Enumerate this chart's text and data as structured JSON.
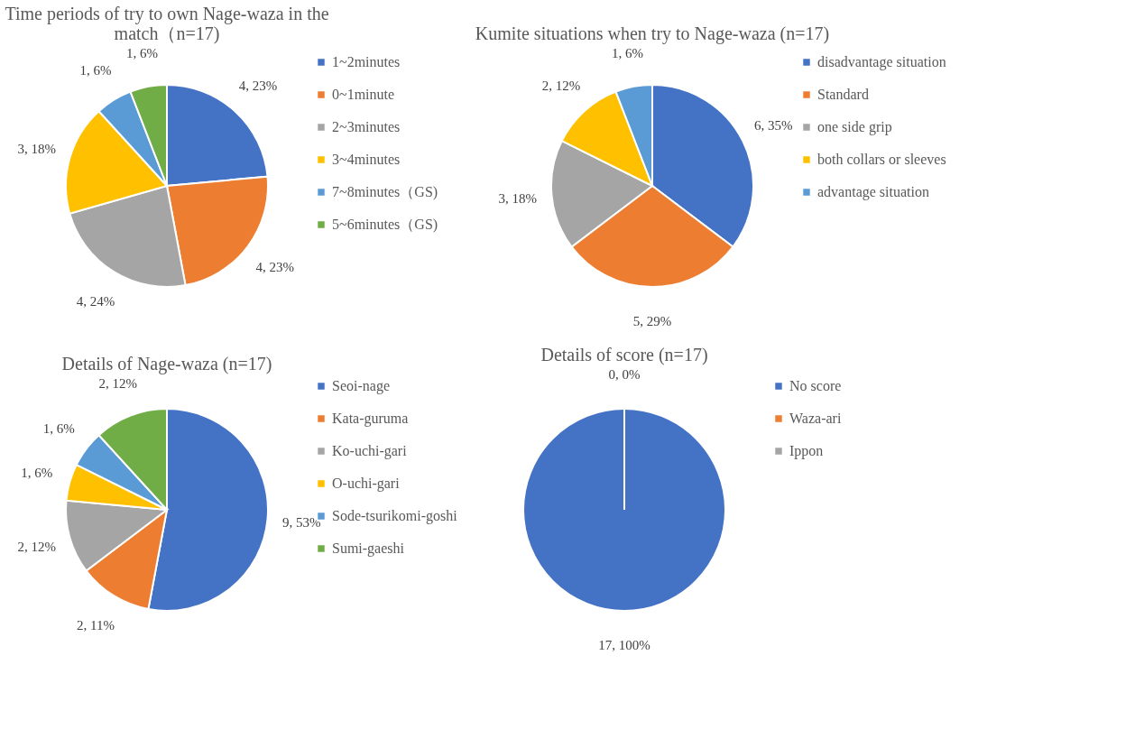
{
  "chart_data": [
    {
      "type": "pie",
      "title": "Time periods of try to own Nage-waza in the match（n=17)",
      "categories": [
        "1~2minutes",
        "0~1minute",
        "2~3minutes",
        "3~4minutes",
        "7~8minutes（GS)",
        "5~6minutes（GS)"
      ],
      "values": [
        4,
        4,
        4,
        3,
        1,
        1
      ],
      "value_labels": [
        "4, 23%",
        "4, 23%",
        "4, 24%",
        "3, 18%",
        "1, 6%",
        "1, 6%"
      ],
      "colors": [
        "#4472c4",
        "#ed7d31",
        "#a5a5a5",
        "#ffc000",
        "#5b9bd5",
        "#70ad47"
      ],
      "legend": "right"
    },
    {
      "type": "pie",
      "title": "Kumite situations when try to Nage-waza (n=17)",
      "categories": [
        "disadvantage situation",
        "Standard",
        "one side grip",
        "both collars or sleeves",
        "advantage situation"
      ],
      "values": [
        6,
        5,
        3,
        2,
        1
      ],
      "value_labels": [
        "6, 35%",
        "5, 29%",
        "3, 18%",
        "2, 12%",
        "1, 6%"
      ],
      "colors": [
        "#4472c4",
        "#ed7d31",
        "#a5a5a5",
        "#ffc000",
        "#5b9bd5"
      ],
      "legend": "right"
    },
    {
      "type": "pie",
      "title": "Details of Nage-waza (n=17)",
      "categories": [
        "Seoi-nage",
        "Kata-guruma",
        "Ko-uchi-gari",
        "O-uchi-gari",
        "Sode-tsurikomi-goshi",
        "Sumi-gaeshi"
      ],
      "values": [
        9,
        2,
        2,
        1,
        1,
        2
      ],
      "value_labels": [
        "9, 53%",
        "2, 11%",
        "2, 12%",
        "1, 6%",
        "1, 6%",
        "2, 12%"
      ],
      "colors": [
        "#4472c4",
        "#ed7d31",
        "#a5a5a5",
        "#ffc000",
        "#5b9bd5",
        "#70ad47"
      ],
      "legend": "right"
    },
    {
      "type": "pie",
      "title": "Details of score (n=17)",
      "categories": [
        "No score",
        "Waza-ari",
        "Ippon"
      ],
      "values": [
        17,
        0,
        0
      ],
      "value_labels": [
        "17, 100%",
        "0, 0%",
        null
      ],
      "colors": [
        "#4472c4",
        "#ed7d31",
        "#a5a5a5"
      ],
      "legend": "right"
    }
  ]
}
